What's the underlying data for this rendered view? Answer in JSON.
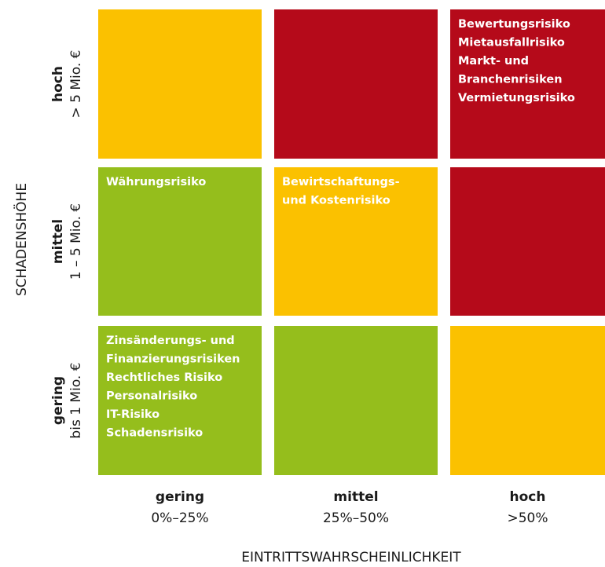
{
  "y_axis_title": "SCHADENSHÖHE",
  "x_axis_title": "EINTRITTSWAHRSCHEINLICHKEIT",
  "rows": [
    {
      "label": "hoch",
      "sublabel": "> 5 Mio. €"
    },
    {
      "label": "mittel",
      "sublabel": "1 – 5 Mio. €"
    },
    {
      "label": "gering",
      "sublabel": "bis 1 Mio. €"
    }
  ],
  "columns": [
    {
      "label": "gering",
      "sublabel": "0%–25%"
    },
    {
      "label": "mittel",
      "sublabel": "25%–50%"
    },
    {
      "label": "hoch",
      "sublabel": ">50%"
    }
  ],
  "matrix": [
    [
      {
        "color": "#fbc100",
        "lines": []
      },
      {
        "color": "#b50a1a",
        "lines": []
      },
      {
        "color": "#b50a1a",
        "lines": [
          "Bewertungsrisiko",
          "Mietausfallrisiko",
          "Markt- und",
          "Branchenrisiken",
          "Vermietungsrisiko"
        ]
      }
    ],
    [
      {
        "color": "#95be1c",
        "lines": [
          "Währungsrisiko"
        ]
      },
      {
        "color": "#fbc100",
        "lines": [
          "Bewirtschaftungs-",
          "und Kostenrisiko"
        ]
      },
      {
        "color": "#b50a1a",
        "lines": []
      }
    ],
    [
      {
        "color": "#95be1c",
        "lines": [
          "Zinsänderungs- und",
          "Finanzierungsrisiken",
          "Rechtliches Risiko",
          "Personalrisiko",
          "IT-Risiko",
          "Schadensrisiko"
        ]
      },
      {
        "color": "#95be1c",
        "lines": []
      },
      {
        "color": "#fbc100",
        "lines": []
      }
    ]
  ]
}
